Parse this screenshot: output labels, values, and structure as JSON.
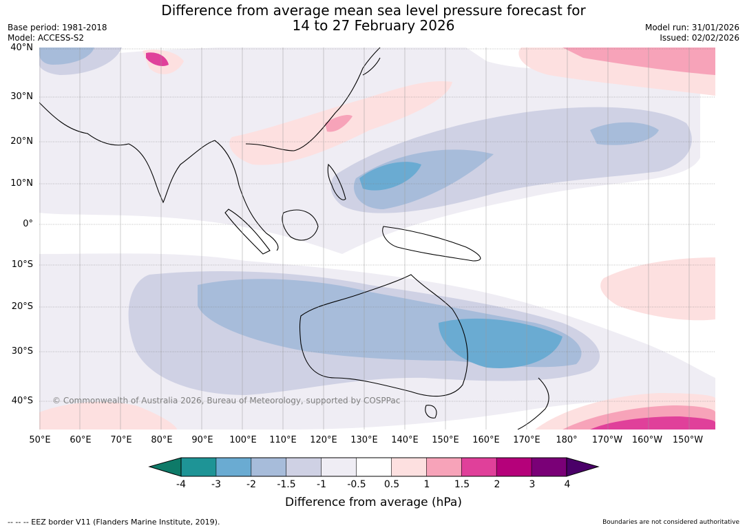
{
  "header": {
    "title_line1": "Difference from average mean sea level pressure forecast for",
    "title_line2": "14 to 27 February 2026",
    "base_period": "Base period: 1981-2018",
    "model": "Model: ACCESS-S2",
    "model_run": "Model run: 31/01/2026",
    "issued": "Issued: 02/02/2026"
  },
  "map": {
    "latitude_labels": [
      "40°N",
      "30°N",
      "20°N",
      "10°N",
      "0°",
      "10°S",
      "20°S",
      "30°S",
      "40°S"
    ],
    "longitude_labels": [
      "50°E",
      "60°E",
      "70°E",
      "80°E",
      "90°E",
      "100°E",
      "110°E",
      "120°E",
      "130°E",
      "140°E",
      "150°E",
      "160°E",
      "170°E",
      "180°",
      "170°W",
      "160°W",
      "150°W"
    ],
    "copyright": "© Commonwealth of Australia 2026, Bureau of Meteorology, supported by COSPPac"
  },
  "colorbar": {
    "ticks": [
      "-4",
      "-3",
      "-2",
      "-1.5",
      "-1",
      "-0.5",
      "0.5",
      "1",
      "1.5",
      "2",
      "3",
      "4"
    ],
    "colors": [
      "#0e7a68",
      "#1e9496",
      "#6aabd2",
      "#a7bcda",
      "#cfd1e4",
      "#efedf4",
      "#ffffff",
      "#fde0e0",
      "#f7a3b9",
      "#e0409a",
      "#b5017a",
      "#7a0077",
      "#4a0068"
    ],
    "label": "Difference from average (hPa)"
  },
  "footer": {
    "eez_legend": "--  --  -- EEZ border V11 (Flanders Marine Institute, 2019).",
    "disclaimer": "Boundaries are not considered authoritative"
  }
}
